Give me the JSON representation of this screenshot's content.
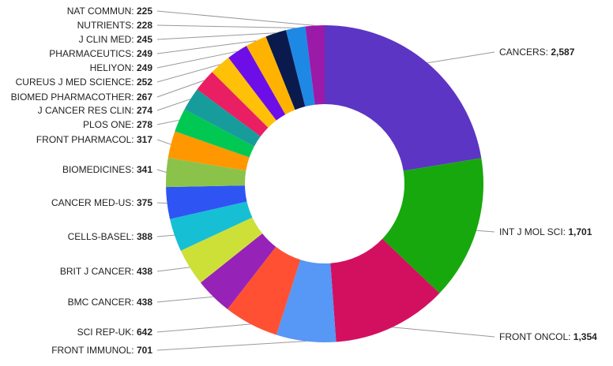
{
  "chart_data": {
    "type": "pie",
    "donut": true,
    "categories": [
      "CANCERS",
      "INT J MOL SCI",
      "FRONT ONCOL",
      "FRONT IMMUNOL",
      "SCI REP-UK",
      "BMC CANCER",
      "BRIT J CANCER",
      "CELLS-BASEL",
      "CANCER MED-US",
      "BIOMEDICINES",
      "FRONT PHARMACOL",
      "PLOS ONE",
      "J CANCER RES CLIN",
      "BIOMED PHARMACOTHER",
      "CUREUS J MED SCIENCE",
      "HELIYON",
      "PHARMACEUTICS",
      "J CLIN MED",
      "NUTRIENTS",
      "NAT COMMUN"
    ],
    "values": [
      2587,
      1701,
      1354,
      701,
      642,
      438,
      438,
      388,
      375,
      341,
      317,
      278,
      274,
      267,
      252,
      249,
      249,
      245,
      228,
      225
    ],
    "value_labels": [
      "2,587",
      "1,701",
      "1,354",
      "701",
      "642",
      "438",
      "438",
      "388",
      "375",
      "341",
      "317",
      "278",
      "274",
      "267",
      "252",
      "249",
      "249",
      "245",
      "228",
      "225"
    ],
    "colors": [
      "#5c35c4",
      "#17a80d",
      "#d3105f",
      "#5797f5",
      "#ff5033",
      "#9622b8",
      "#cde038",
      "#17bfd4",
      "#2e55f3",
      "#8bc34a",
      "#ff9800",
      "#00c853",
      "#179c9c",
      "#e91e63",
      "#ffc107",
      "#6d0ee8",
      "#ffb300",
      "#0b1a4d",
      "#1e88e5",
      "#ff5722"
    ],
    "colors_tail": "#9b1aa8",
    "legend": "none",
    "title": ""
  }
}
